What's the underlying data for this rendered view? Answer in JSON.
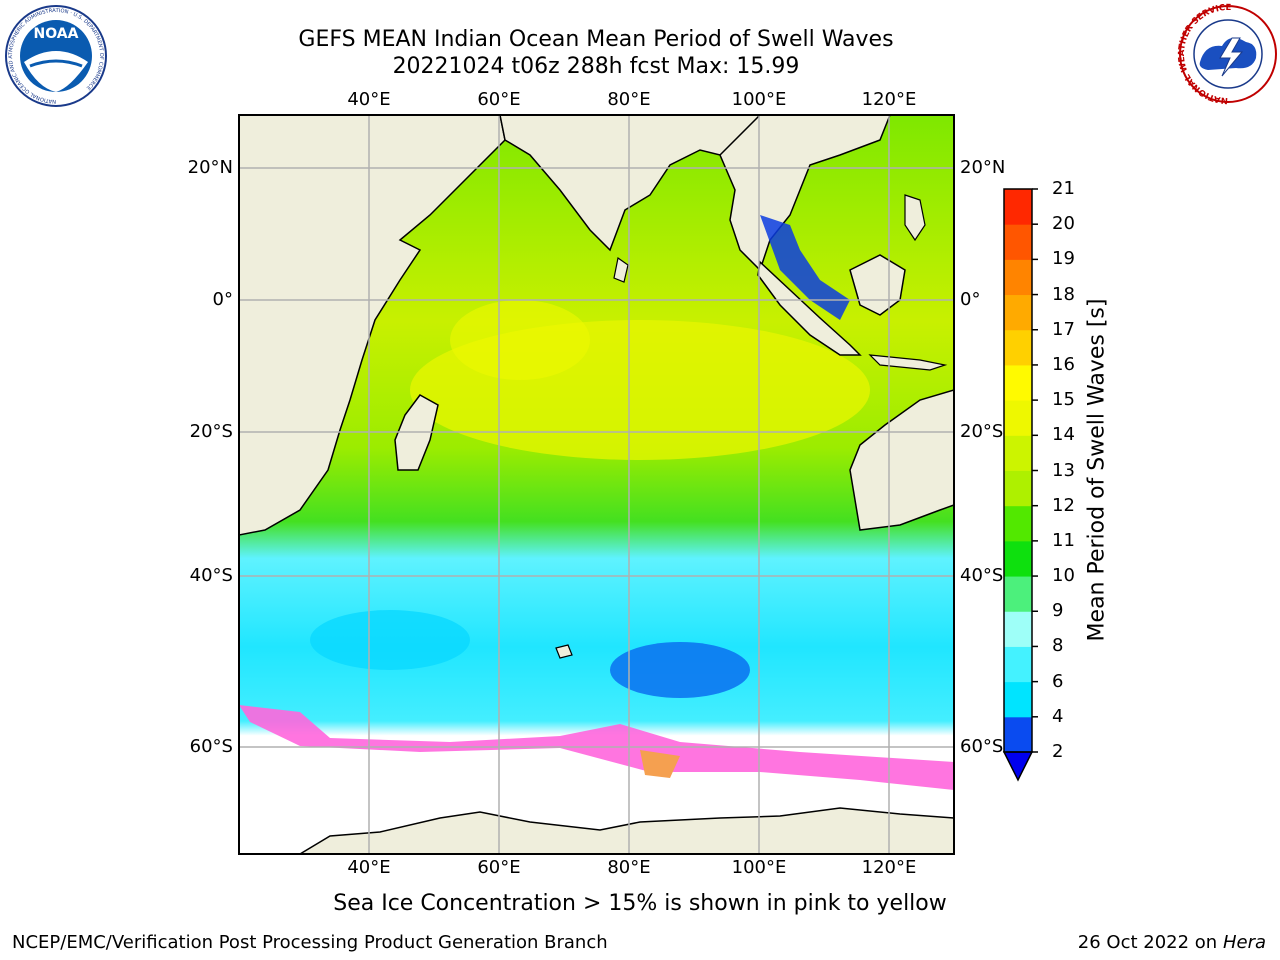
{
  "title": {
    "line1": "GEFS MEAN Indian Ocean Mean Period of Swell Waves",
    "line2": "20221024 t06z 288h fcst   Max: 15.99"
  },
  "map": {
    "lon_ticks": [
      "40°E",
      "60°E",
      "80°E",
      "100°E",
      "120°E"
    ],
    "lat_ticks": [
      "20°N",
      "0°",
      "20°S",
      "40°S",
      "60°S"
    ],
    "lon_range": [
      20,
      130
    ],
    "lat_range": [
      -72,
      28
    ],
    "colors": {
      "land": "#efeedc",
      "ice_free_white": "#ffffff",
      "grid": "#b0b0b0"
    }
  },
  "colorbar": {
    "label": "Mean Period of Swell Waves [s]",
    "ticks": [
      "2",
      "4",
      "6",
      "8",
      "9",
      "10",
      "11",
      "12",
      "13",
      "14",
      "15",
      "16",
      "17",
      "18",
      "19",
      "20",
      "21"
    ],
    "colors": [
      "#0a4bf0",
      "#00e4ff",
      "#44f2ff",
      "#9efff8",
      "#4cf07c",
      "#0ee00e",
      "#52e800",
      "#aef000",
      "#ccf400",
      "#eef800",
      "#fffa00",
      "#ffd000",
      "#ffaa00",
      "#ff8400",
      "#ff5600",
      "#ff2800"
    ],
    "under_color": "#0000ee"
  },
  "notes": {
    "ice": "Sea Ice Concentration > 15% is shown in pink to yellow"
  },
  "footer": {
    "left": "NCEP/EMC/Verification Post Processing Product Generation Branch",
    "date": "26 Oct 2022 on",
    "machine": "Hera"
  },
  "logos": {
    "noaa_text": "NOAA",
    "noaa_ring": "NATIONAL OCEANIC AND ATMOSPHERIC ADMINISTRATION · U.S. DEPARTMENT OF COMMERCE",
    "nws_ring": "NATIONAL WEATHER SERVICE"
  }
}
